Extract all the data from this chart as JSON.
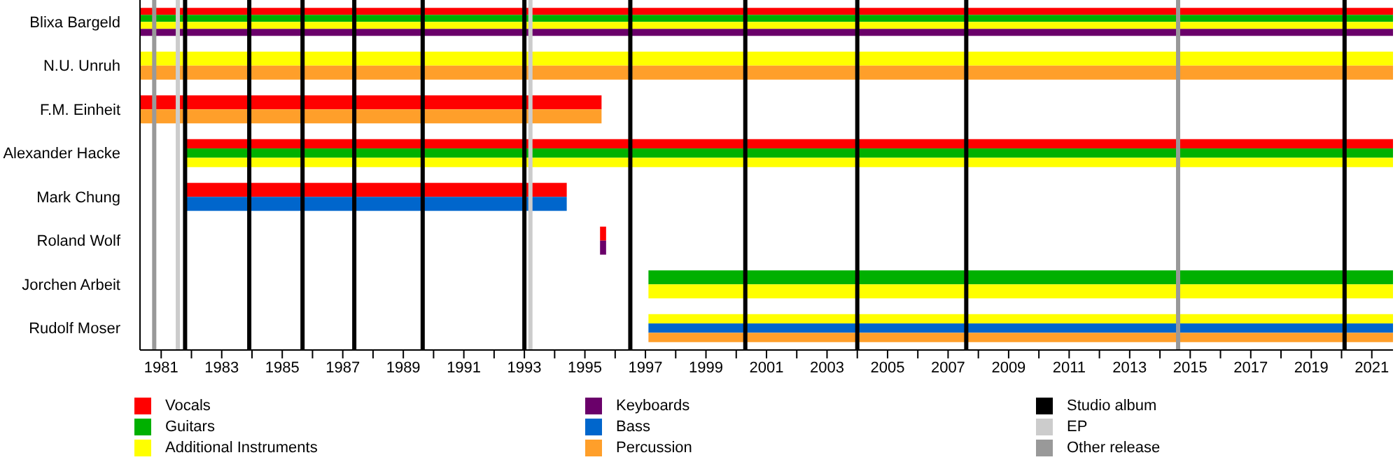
{
  "chart_data": {
    "type": "bar",
    "orientation": "horizontal",
    "legend": "bottom",
    "categories": [
      "Blixa Bargeld",
      "N.U. Unruh",
      "F.M. Einheit",
      "Alexander Hacke",
      "Mark Chung",
      "Roland Wolf",
      "Jorchen Arbeit",
      "Rudolf Moser"
    ],
    "series": [
      {
        "name": "Vocals",
        "color": "#ff0000",
        "base": [
          1980.3,
          null,
          1980.3,
          1981.8,
          1981.8,
          1995.5,
          null,
          null
        ],
        "values": [
          41.4,
          null,
          15.25,
          39.9,
          12.6,
          0.2,
          null,
          null
        ]
      },
      {
        "name": "Guitars",
        "color": "#00b000",
        "base": [
          1980.3,
          null,
          null,
          1981.8,
          null,
          null,
          1997.1,
          null
        ],
        "values": [
          41.4,
          null,
          null,
          39.9,
          null,
          null,
          24.6,
          null
        ]
      },
      {
        "name": "Additional Instruments",
        "color": "#ffff00",
        "base": [
          1980.3,
          1980.3,
          null,
          1981.8,
          null,
          null,
          1997.1,
          1997.1
        ],
        "values": [
          41.4,
          41.4,
          null,
          39.9,
          null,
          null,
          24.6,
          24.6
        ]
      },
      {
        "name": "Keyboards",
        "color": "#6a006a",
        "base": [
          1980.3,
          null,
          null,
          null,
          null,
          1995.5,
          null,
          null
        ],
        "values": [
          41.4,
          null,
          null,
          null,
          null,
          0.2,
          null,
          null
        ]
      },
      {
        "name": "Bass",
        "color": "#0066cc",
        "base": [
          null,
          null,
          null,
          null,
          1981.8,
          null,
          null,
          1997.1
        ],
        "values": [
          null,
          null,
          null,
          null,
          12.6,
          null,
          null,
          24.6
        ]
      },
      {
        "name": "Percussion",
        "color": "#ff9f2a",
        "base": [
          null,
          1980.3,
          1980.3,
          null,
          null,
          null,
          null,
          1997.1
        ],
        "values": [
          null,
          41.4,
          15.25,
          null,
          null,
          null,
          null,
          24.6
        ]
      }
    ],
    "xlim": [
      1980.3,
      2021.7
    ],
    "xticks": [
      1981,
      {
        "value": 1982,
        "label": null
      },
      1983,
      {
        "value": 1984,
        "label": null
      },
      1985,
      {
        "value": 1986,
        "label": null
      },
      1987,
      {
        "value": 1988,
        "label": null
      },
      1989,
      {
        "value": 1990,
        "label": null
      },
      1991,
      {
        "value": 1992,
        "label": null
      },
      1993,
      {
        "value": 1994,
        "label": null
      },
      1995,
      {
        "value": 1996,
        "label": null
      },
      1997,
      {
        "value": 1998,
        "label": null
      },
      1999,
      {
        "value": 2000,
        "label": null
      },
      2001,
      {
        "value": 2002,
        "label": null
      },
      2003,
      {
        "value": 2004,
        "label": null
      },
      2005,
      {
        "value": 2006,
        "label": null
      },
      2007,
      {
        "value": 2008,
        "label": null
      },
      2009,
      {
        "value": 2010,
        "label": null
      },
      2011,
      {
        "value": 2012,
        "label": null
      },
      2013,
      {
        "value": 2014,
        "label": null
      },
      2015,
      {
        "value": 2016,
        "label": null
      },
      2017,
      {
        "value": 2018,
        "label": null
      },
      2019,
      {
        "value": 2020,
        "label": null
      },
      2021
    ],
    "ref_lines": [
      {
        "axis": "x",
        "value": 1981.79,
        "label": "Studio album",
        "color": "#000000"
      },
      {
        "axis": "x",
        "value": 1983.91,
        "color": "#000000"
      },
      {
        "axis": "x",
        "value": 1985.67,
        "color": "#000000"
      },
      {
        "axis": "x",
        "value": 1987.38,
        "color": "#000000"
      },
      {
        "axis": "x",
        "value": 1989.64,
        "color": "#000000"
      },
      {
        "axis": "x",
        "value": 1993.0,
        "color": "#000000"
      },
      {
        "axis": "x",
        "value": 1996.5,
        "color": "#000000"
      },
      {
        "axis": "x",
        "value": 2000.3,
        "color": "#000000"
      },
      {
        "axis": "x",
        "value": 2004.0,
        "color": "#000000"
      },
      {
        "axis": "x",
        "value": 2007.6,
        "color": "#000000"
      },
      {
        "axis": "x",
        "value": 2020.1,
        "color": "#000000"
      },
      {
        "axis": "x",
        "value": 1981.55,
        "label": "EP",
        "color": "#cccccc"
      },
      {
        "axis": "x",
        "value": 1993.2,
        "color": "#cccccc"
      },
      {
        "axis": "x",
        "value": 1980.77,
        "label": "Other release",
        "color": "#999999"
      },
      {
        "axis": "x",
        "value": 2014.6,
        "color": "#999999"
      }
    ]
  }
}
